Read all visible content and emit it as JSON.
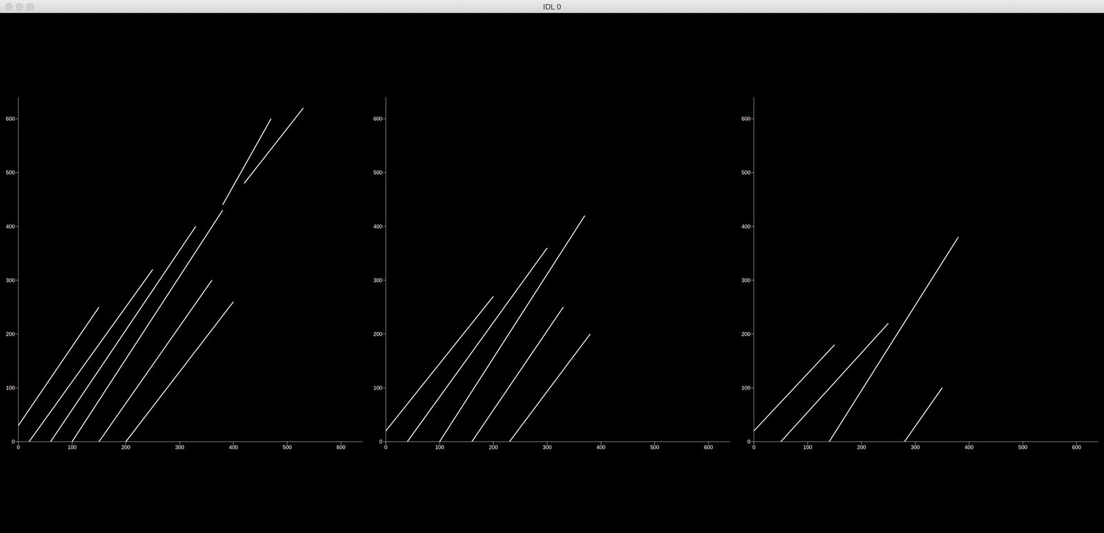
{
  "window": {
    "title": "IDL 0"
  },
  "chart_data": [
    {
      "type": "image",
      "color": "#ffffff",
      "xlim": [
        0,
        640
      ],
      "ylim": [
        0,
        640
      ],
      "xticks": [
        0,
        100,
        200,
        300,
        400,
        500,
        600
      ],
      "yticks": [
        0,
        100,
        200,
        300,
        400,
        500,
        600
      ],
      "streaks": [
        [
          [
            0,
            30
          ],
          [
            150,
            250
          ]
        ],
        [
          [
            20,
            0
          ],
          [
            250,
            320
          ]
        ],
        [
          [
            60,
            0
          ],
          [
            330,
            400
          ]
        ],
        [
          [
            100,
            0
          ],
          [
            380,
            430
          ]
        ],
        [
          [
            150,
            0
          ],
          [
            360,
            300
          ]
        ],
        [
          [
            200,
            0
          ],
          [
            400,
            260
          ]
        ],
        [
          [
            380,
            440
          ],
          [
            470,
            600
          ]
        ],
        [
          [
            420,
            480
          ],
          [
            530,
            620
          ]
        ]
      ]
    },
    {
      "type": "image",
      "color": "#ffffff",
      "xlim": [
        0,
        640
      ],
      "ylim": [
        0,
        640
      ],
      "xticks": [
        0,
        100,
        200,
        300,
        400,
        500,
        600
      ],
      "yticks": [
        0,
        100,
        200,
        300,
        400,
        500,
        600
      ],
      "streaks": [
        [
          [
            0,
            20
          ],
          [
            200,
            270
          ]
        ],
        [
          [
            40,
            0
          ],
          [
            300,
            360
          ]
        ],
        [
          [
            100,
            0
          ],
          [
            370,
            420
          ]
        ],
        [
          [
            160,
            0
          ],
          [
            330,
            250
          ]
        ],
        [
          [
            230,
            0
          ],
          [
            380,
            200
          ]
        ]
      ]
    },
    {
      "type": "image",
      "color": "#ffffff",
      "xlim": [
        0,
        640
      ],
      "ylim": [
        0,
        640
      ],
      "xticks": [
        0,
        100,
        200,
        300,
        400,
        500,
        600
      ],
      "yticks": [
        0,
        100,
        200,
        300,
        400,
        500,
        600
      ],
      "streaks": [
        [
          [
            0,
            20
          ],
          [
            150,
            180
          ]
        ],
        [
          [
            50,
            0
          ],
          [
            250,
            220
          ]
        ],
        [
          [
            140,
            0
          ],
          [
            380,
            380
          ]
        ],
        [
          [
            280,
            0
          ],
          [
            350,
            100
          ]
        ]
      ]
    }
  ]
}
